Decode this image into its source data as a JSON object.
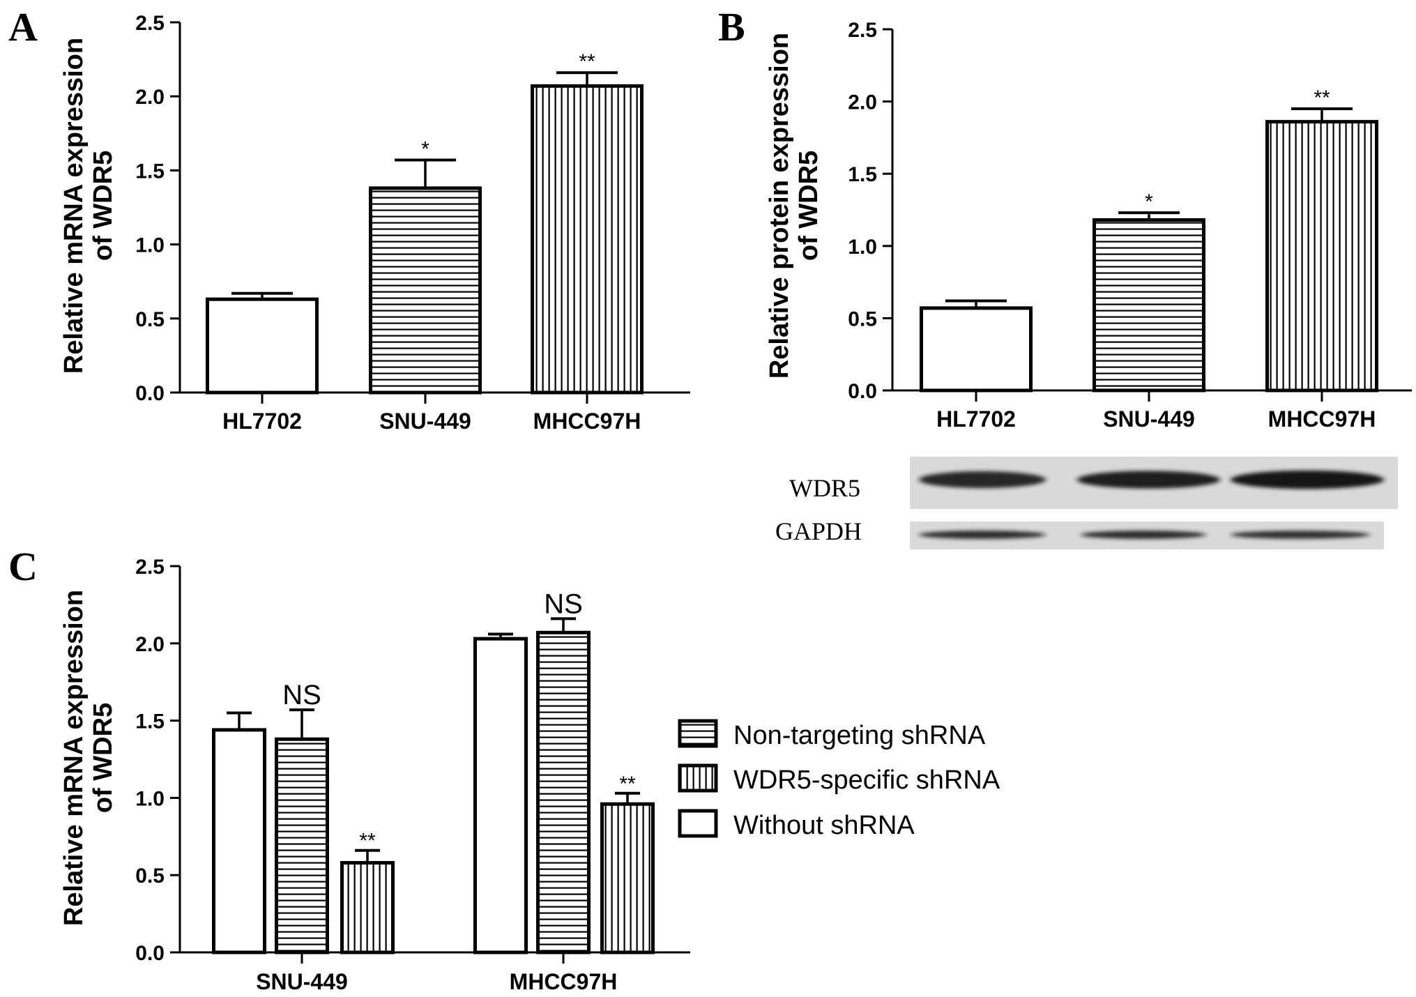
{
  "panels": {
    "A": "A",
    "B": "B",
    "C": "C"
  },
  "colors": {
    "ink": "#000000",
    "bar_fill": "#ffffff",
    "blot_background": "#d9d9d9",
    "band": "#161616"
  },
  "chart_data": [
    {
      "panel": "A",
      "type": "bar",
      "ylabel_lines": [
        "Relative mRNA expression",
        "of WDR5"
      ],
      "ylim": [
        0,
        2.5
      ],
      "yticks": [
        "0.0",
        "0.5",
        "1.0",
        "1.5",
        "2.0",
        "2.5"
      ],
      "categories": [
        "HL7702",
        "SNU-449",
        "MHCC97H"
      ],
      "values": [
        0.63,
        1.38,
        2.07
      ],
      "errors": [
        0.04,
        0.19,
        0.09
      ],
      "patterns": [
        "none",
        "horizontal",
        "vertical"
      ],
      "significance": [
        "",
        "*",
        "**"
      ]
    },
    {
      "panel": "B",
      "type": "bar",
      "ylabel_lines": [
        "Relative protein expression",
        "of WDR5"
      ],
      "ylim": [
        0,
        2.5
      ],
      "yticks": [
        "0.0",
        "0.5",
        "1.0",
        "1.5",
        "2.0",
        "2.5"
      ],
      "categories": [
        "HL7702",
        "SNU-449",
        "MHCC97H"
      ],
      "values": [
        0.57,
        1.18,
        1.86
      ],
      "errors": [
        0.05,
        0.05,
        0.09
      ],
      "patterns": [
        "none",
        "horizontal",
        "vertical"
      ],
      "significance": [
        "",
        "*",
        "**"
      ]
    },
    {
      "panel": "C",
      "type": "bar",
      "ylabel_lines": [
        "Relative mRNA expression",
        "of WDR5"
      ],
      "ylim": [
        0,
        2.5
      ],
      "yticks": [
        "0.0",
        "0.5",
        "1.0",
        "1.5",
        "2.0",
        "2.5"
      ],
      "categories": [
        "SNU-449",
        "MHCC97H"
      ],
      "series": [
        {
          "name": "Without shRNA",
          "pattern": "none",
          "values": [
            1.44,
            2.03
          ],
          "errors": [
            0.11,
            0.03
          ],
          "significance": [
            "",
            ""
          ]
        },
        {
          "name": "Non-targeting shRNA",
          "pattern": "horizontal",
          "values": [
            1.38,
            2.07
          ],
          "errors": [
            0.19,
            0.09
          ],
          "significance": [
            "NS",
            "NS"
          ]
        },
        {
          "name": "WDR5-specific shRNA",
          "pattern": "vertical",
          "values": [
            0.58,
            0.96
          ],
          "errors": [
            0.08,
            0.07
          ],
          "significance": [
            "**",
            "**"
          ]
        }
      ],
      "legend": {
        "position": "right",
        "entries": [
          {
            "label": "Non-targeting shRNA",
            "pattern": "horizontal"
          },
          {
            "label": "WDR5-specific shRNA",
            "pattern": "vertical"
          },
          {
            "label": "Without shRNA",
            "pattern": "none"
          }
        ]
      }
    }
  ],
  "western_blot": {
    "rows": [
      {
        "label": "WDR5",
        "band_intensity": [
          0.8,
          0.9,
          1.0
        ]
      },
      {
        "label": "GAPDH",
        "band_intensity": [
          0.75,
          0.75,
          0.7
        ]
      }
    ]
  }
}
